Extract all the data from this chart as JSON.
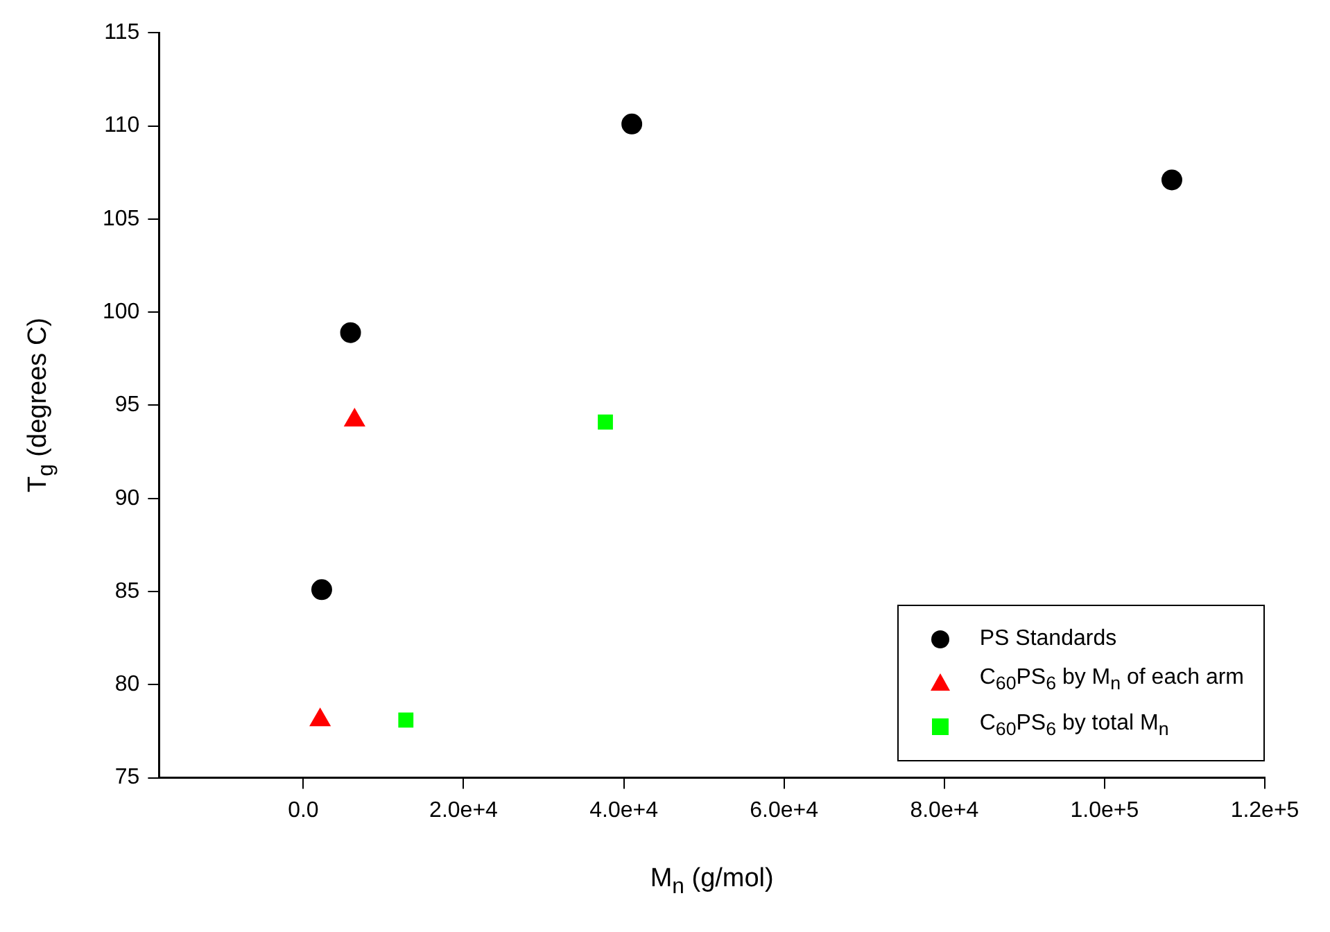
{
  "chart_data": {
    "type": "scatter",
    "xlabel": "M$_{n}$ (g/mol)",
    "ylabel": "T$_{g}$ (degrees C)",
    "series": [
      {
        "name": "PS Standards",
        "color": "#000000",
        "marker": "circle",
        "x": [
          2300,
          5900,
          41000,
          108400
        ],
        "values": [
          85.1,
          98.9,
          110.1,
          107.1
        ]
      },
      {
        "name": "C$_{60}$PS$_{6}$ by M$_{n}$ of each arm",
        "color": "#ff0000",
        "marker": "triangle",
        "x": [
          2100,
          6400
        ],
        "values": [
          78.1,
          94.2
        ]
      },
      {
        "name": "C$_{60}$PS$_{6}$ by total M$_{n}$",
        "color": "#00ff00",
        "marker": "square",
        "x": [
          12800,
          37700
        ],
        "values": [
          78.1,
          94.1
        ]
      }
    ],
    "xlim": [
      -18000,
      120000
    ],
    "xticks": [
      {
        "value": 0,
        "label": "0.0"
      },
      {
        "value": 20000,
        "label": "2.0e+4"
      },
      {
        "value": 40000,
        "label": "4.0e+4"
      },
      {
        "value": 60000,
        "label": "6.0e+4"
      },
      {
        "value": 80000,
        "label": "8.0e+4"
      },
      {
        "value": 100000,
        "label": "1.0e+5"
      },
      {
        "value": 120000,
        "label": "1.2e+5"
      }
    ],
    "ylim": [
      75,
      115
    ],
    "yticks": [
      75,
      80,
      85,
      90,
      95,
      100,
      105,
      110,
      115
    ],
    "grid": false,
    "legend": "bottom right"
  }
}
